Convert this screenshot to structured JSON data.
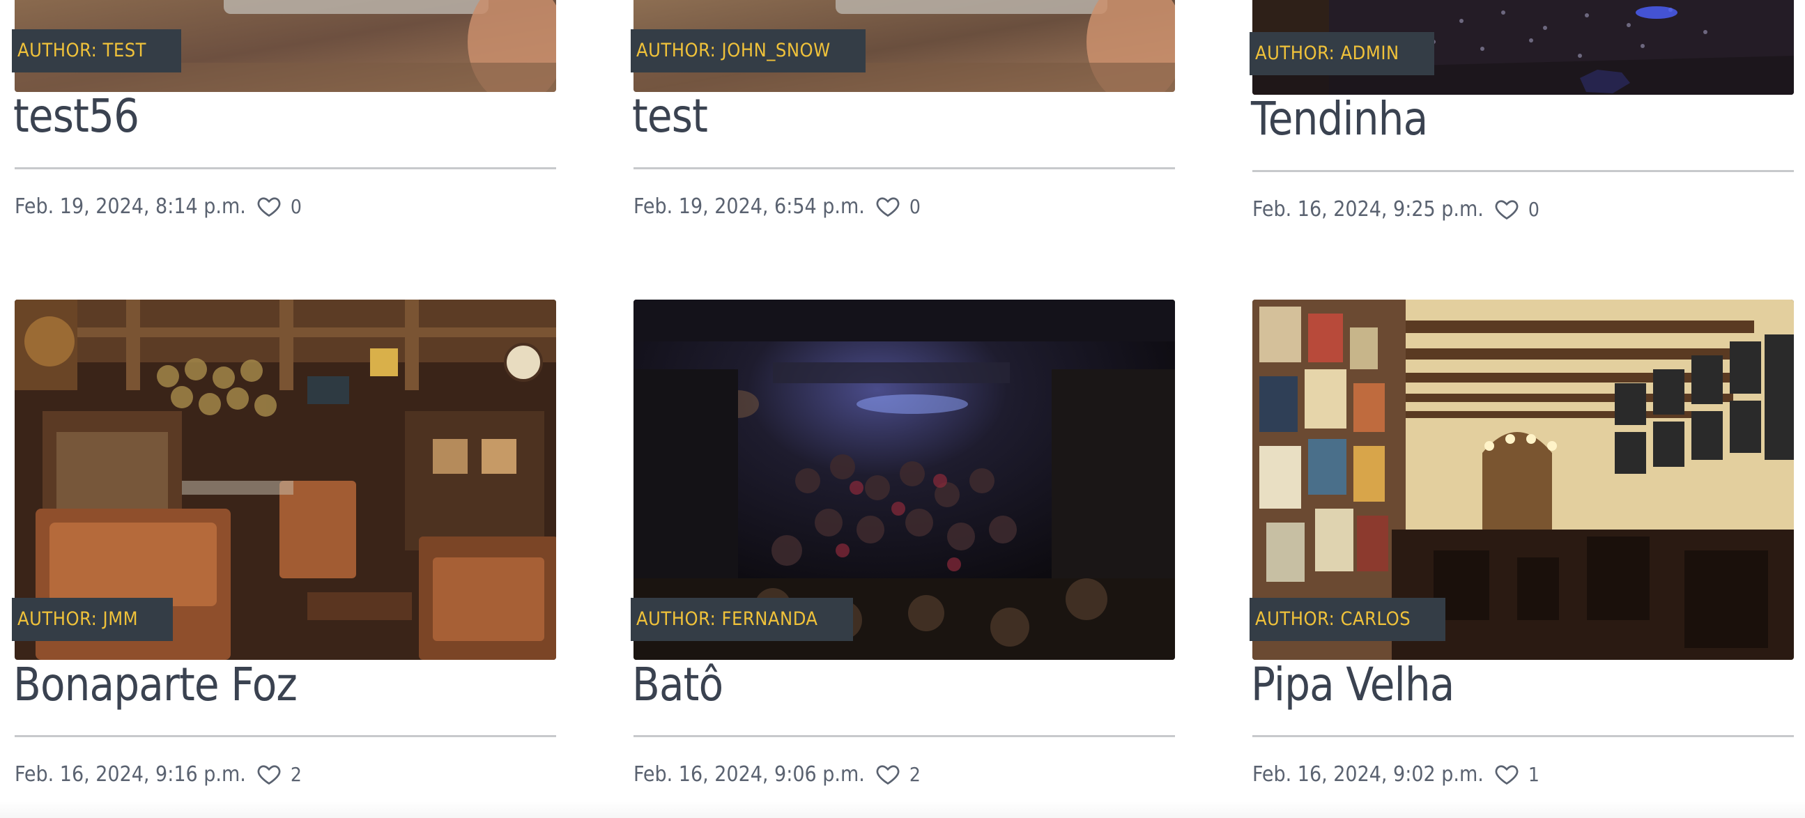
{
  "posts": [
    {
      "author_badge": "AUTHOR: TEST",
      "title": "test56",
      "date": "Feb. 19, 2024, 8:14 p.m.",
      "likes": "0"
    },
    {
      "author_badge": "AUTHOR: JOHN_SNOW",
      "title": "test",
      "date": "Feb. 19, 2024, 6:54 p.m.",
      "likes": "0"
    },
    {
      "author_badge": "AUTHOR: ADMIN",
      "title": "Tendinha",
      "date": "Feb. 16, 2024, 9:25 p.m.",
      "likes": "0"
    },
    {
      "author_badge": "AUTHOR: JMM",
      "title": "Bonaparte Foz",
      "date": "Feb. 16, 2024, 9:16 p.m.",
      "likes": "2"
    },
    {
      "author_badge": "AUTHOR: FERNANDA",
      "title": "Batô",
      "date": "Feb. 16, 2024, 9:06 p.m.",
      "likes": "2"
    },
    {
      "author_badge": "AUTHOR: CARLOS",
      "title": "Pipa Velha",
      "date": "Feb. 16, 2024, 9:02 p.m.",
      "likes": "1"
    }
  ],
  "colors": {
    "badge_bg": "#343d46",
    "badge_text": "#f0c23a",
    "title_text": "#3a4250",
    "divider": "#c7c9cc"
  },
  "icons": {
    "like": "heart-outline-icon"
  }
}
